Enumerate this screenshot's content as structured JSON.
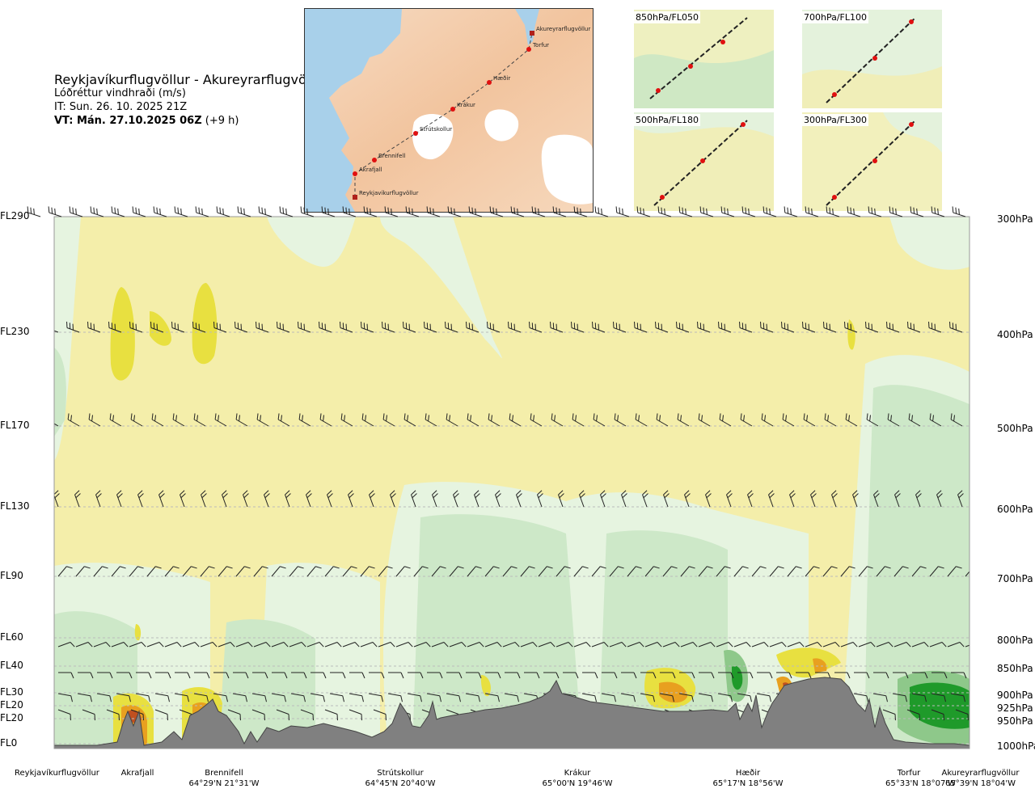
{
  "header": {
    "title": "Reykjavíkurflugvöllur - Akureyrarflugvöllur",
    "subtitle": "Lóðréttur vindhraði (m/s)",
    "it_line": "IT: Sun. 26. 10. 2025 21Z",
    "vt_bold": "VT: Mán. 27.10.2025 06Z",
    "vt_offset": " (+9 h)"
  },
  "map": {
    "waypoints": [
      {
        "name": "Reykjavíkurflugvöllur"
      },
      {
        "name": "Akrafjall"
      },
      {
        "name": "Brennifell"
      },
      {
        "name": "Strútskollur"
      },
      {
        "name": "Krákur"
      },
      {
        "name": "Hæðir"
      },
      {
        "name": "Torfur"
      },
      {
        "name": "Akureyrarflugvöllur"
      }
    ]
  },
  "thumbnails": [
    {
      "label": "850hPa/FL050"
    },
    {
      "label": "700hPa/FL100"
    },
    {
      "label": "500hPa/FL180"
    },
    {
      "label": "300hPa/FL300"
    }
  ],
  "colors": {
    "yellow_light": "#f4eeaa",
    "yellow_strong": "#e8e040",
    "orange": "#e8a020",
    "red": "#c05020",
    "green_pale": "#e6f4e0",
    "green_light": "#cde8c8",
    "green_mid": "#8ec88a",
    "green_dark": "#1f9a2a",
    "terrain": "#808080",
    "route_marker": "#e01010"
  },
  "chart_data": {
    "type": "heatmap",
    "title": "Reykjavíkurflugvöllur - Akureyrarflugvöllur",
    "variable": "Lóðréttur vindhraði (m/s)",
    "y_left_ticks": [
      "FL290",
      "FL230",
      "FL170",
      "FL130",
      "FL90",
      "FL60",
      "FL40",
      "FL30",
      "FL20",
      "FL20",
      "FL0"
    ],
    "y_right_ticks": [
      "300hPa",
      "400hPa",
      "500hPa",
      "600hPa",
      "700hPa",
      "800hPa",
      "850hPa",
      "900hPa",
      "925hPa",
      "950hPa",
      "1000hPa"
    ],
    "x_points": [
      {
        "name": "Reykjavíkurflugvöllur",
        "coord": ""
      },
      {
        "name": "Akrafjall",
        "coord": ""
      },
      {
        "name": "Brennifell",
        "coord": "64°29'N 21°31'W"
      },
      {
        "name": "Strútskollur",
        "coord": "64°45'N 20°40'W"
      },
      {
        "name": "Krákur",
        "coord": "65°00'N 19°46'W"
      },
      {
        "name": "Hæðir",
        "coord": "65°17'N 18°56'W"
      },
      {
        "name": "Torfur",
        "coord": "65°33'N 18°07'W"
      },
      {
        "name": "Akureyrarflugvöllur",
        "coord": "65°39'N 18°04'W"
      }
    ],
    "grid": true,
    "legend": "none"
  }
}
